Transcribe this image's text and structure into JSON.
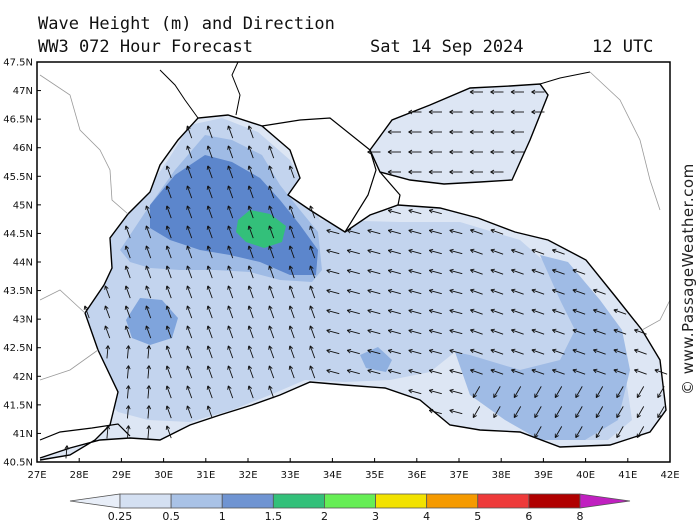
{
  "header": {
    "title": "Wave Height (m) and Direction",
    "model": "WW3 072 Hour Forecast",
    "date": "Sat 14 Sep 2024",
    "time": "12 UTC"
  },
  "map": {
    "region": "Black Sea",
    "lat_labels": [
      "47.5N",
      "47N",
      "46.5N",
      "46N",
      "45.5N",
      "45N",
      "44.5N",
      "44N",
      "43.5N",
      "43N",
      "42.5N",
      "42N",
      "41.5N",
      "41N",
      "40.5N"
    ],
    "lon_labels": [
      "27E",
      "28E",
      "29E",
      "30E",
      "31E",
      "32E",
      "33E",
      "34E",
      "35E",
      "36E",
      "37E",
      "38E",
      "39E",
      "40E",
      "41E",
      "42E"
    ],
    "lat_range": [
      40.5,
      47.5
    ],
    "lon_range": [
      27,
      42
    ],
    "colors": {
      "land": "#ffffff",
      "coast": "#000000",
      "border": "#9a9a9a"
    }
  },
  "legend": {
    "labels": [
      "0.25",
      "0.5",
      "1",
      "1.5",
      "2",
      "3",
      "4",
      "5",
      "6",
      "8"
    ],
    "colors": [
      "#e8eef8",
      "#d4e0f2",
      "#a9c2e6",
      "#6f94d2",
      "#33c07a",
      "#66ee55",
      "#f2e200",
      "#f59a00",
      "#ee3a3a",
      "#b00000",
      "#c020c0"
    ]
  },
  "credit": "© www.PassageWeather.com"
}
